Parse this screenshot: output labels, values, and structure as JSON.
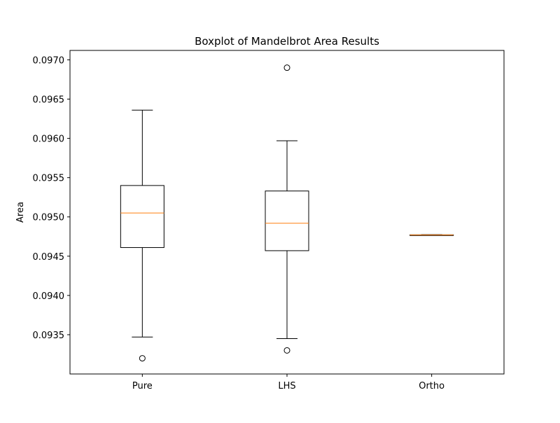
{
  "chart_data": {
    "type": "box",
    "title": "Boxplot of Mandelbrot Area Results",
    "xlabel": "",
    "ylabel": "Area",
    "ylim": [
      0.093,
      0.09712
    ],
    "yticks": [
      {
        "value": 0.0935,
        "label": "0.0935"
      },
      {
        "value": 0.094,
        "label": "0.0940"
      },
      {
        "value": 0.0945,
        "label": "0.0945"
      },
      {
        "value": 0.095,
        "label": "0.0950"
      },
      {
        "value": 0.0955,
        "label": "0.0955"
      },
      {
        "value": 0.096,
        "label": "0.0960"
      },
      {
        "value": 0.0965,
        "label": "0.0965"
      },
      {
        "value": 0.097,
        "label": "0.0970"
      }
    ],
    "categories": [
      "Pure",
      "LHS",
      "Ortho"
    ],
    "boxes": [
      {
        "category": "Pure",
        "whisker_low": 0.09347,
        "q1": 0.09461,
        "median": 0.09505,
        "q3": 0.0954,
        "whisker_high": 0.09636,
        "outliers": [
          0.0932
        ]
      },
      {
        "category": "LHS",
        "whisker_low": 0.09345,
        "q1": 0.09457,
        "median": 0.09492,
        "q3": 0.09533,
        "whisker_high": 0.09597,
        "outliers": [
          0.0933,
          0.0969
        ]
      },
      {
        "category": "Ortho",
        "whisker_low": 0.094767,
        "q1": 0.094768,
        "median": 0.09477,
        "q3": 0.094772,
        "whisker_high": 0.094773,
        "outliers": []
      }
    ],
    "grid": false,
    "colors": {
      "box": "#000000",
      "median": "#ff7f0e",
      "axes": "#000000",
      "background": "#ffffff"
    }
  }
}
